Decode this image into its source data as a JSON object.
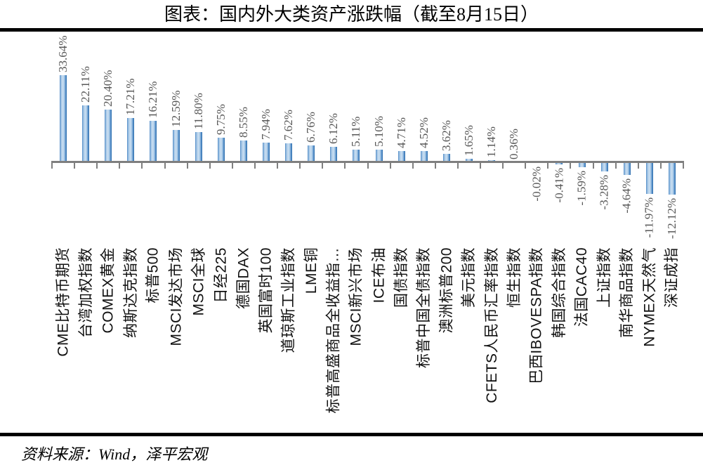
{
  "title": "图表：国内外大类资产涨跌幅（截至8月15日）",
  "source": "资料来源：Wind，泽平宏观",
  "colors": {
    "bar_edge_dark": "#2F6DA9",
    "bar_edge_mid": "#4A86C4",
    "bar_center_light": "#CDE0F2",
    "axis": "#7F7F7F",
    "value_label": "#595959",
    "category_label": "#111111",
    "rule": "#000000",
    "background": "#FFFFFF"
  },
  "chart_data": {
    "type": "bar",
    "orientation": "vertical",
    "title": "图表：国内外大类资产涨跌幅（截至8月15日）",
    "xlabel": "",
    "ylabel": "",
    "ylim": [
      -15,
      35
    ],
    "grid": false,
    "legend_position": "none",
    "value_unit": "%",
    "categories": [
      "CME比特币期货",
      "台湾加权指数",
      "COMEX黄金",
      "纳斯达克指数",
      "标普500",
      "MSCI发达市场",
      "MSCI全球",
      "日经225",
      "德国DAX",
      "英国富时100",
      "道琼斯工业指数",
      "LME铜",
      "标普高盛商品全收益指…",
      "MSCI新兴市场",
      "ICE布油",
      "国债指数",
      "标普中国全债指数",
      "澳洲标普200",
      "美元指数",
      "CFETS人民币汇率指数",
      "恒生指数",
      "巴西IBOVESPA指数",
      "韩国综合指数",
      "法国CAC40",
      "上证指数",
      "南华商品指数",
      "NYMEX天然气",
      "深证成指"
    ],
    "values": [
      33.64,
      22.11,
      20.4,
      17.21,
      16.21,
      12.59,
      11.8,
      9.75,
      8.55,
      7.94,
      7.62,
      6.76,
      6.12,
      5.11,
      5.1,
      4.71,
      4.52,
      3.62,
      1.65,
      1.14,
      0.36,
      -0.02,
      -0.41,
      -1.59,
      -3.28,
      -4.64,
      -11.97,
      -12.12
    ],
    "value_labels": [
      "33.64%",
      "22.11%",
      "20.40%",
      "17.21%",
      "16.21%",
      "12.59%",
      "11.80%",
      "9.75%",
      "8.55%",
      "7.94%",
      "7.62%",
      "6.76%",
      "6.12%",
      "5.11%",
      "5.10%",
      "4.71%",
      "4.52%",
      "3.62%",
      "1.65%",
      "1.14%",
      "0.36%",
      "-0.02%",
      "-0.41%",
      "-1.59%",
      "-3.28%",
      "-4.64%",
      "-11.97%",
      "-12.12%"
    ]
  }
}
